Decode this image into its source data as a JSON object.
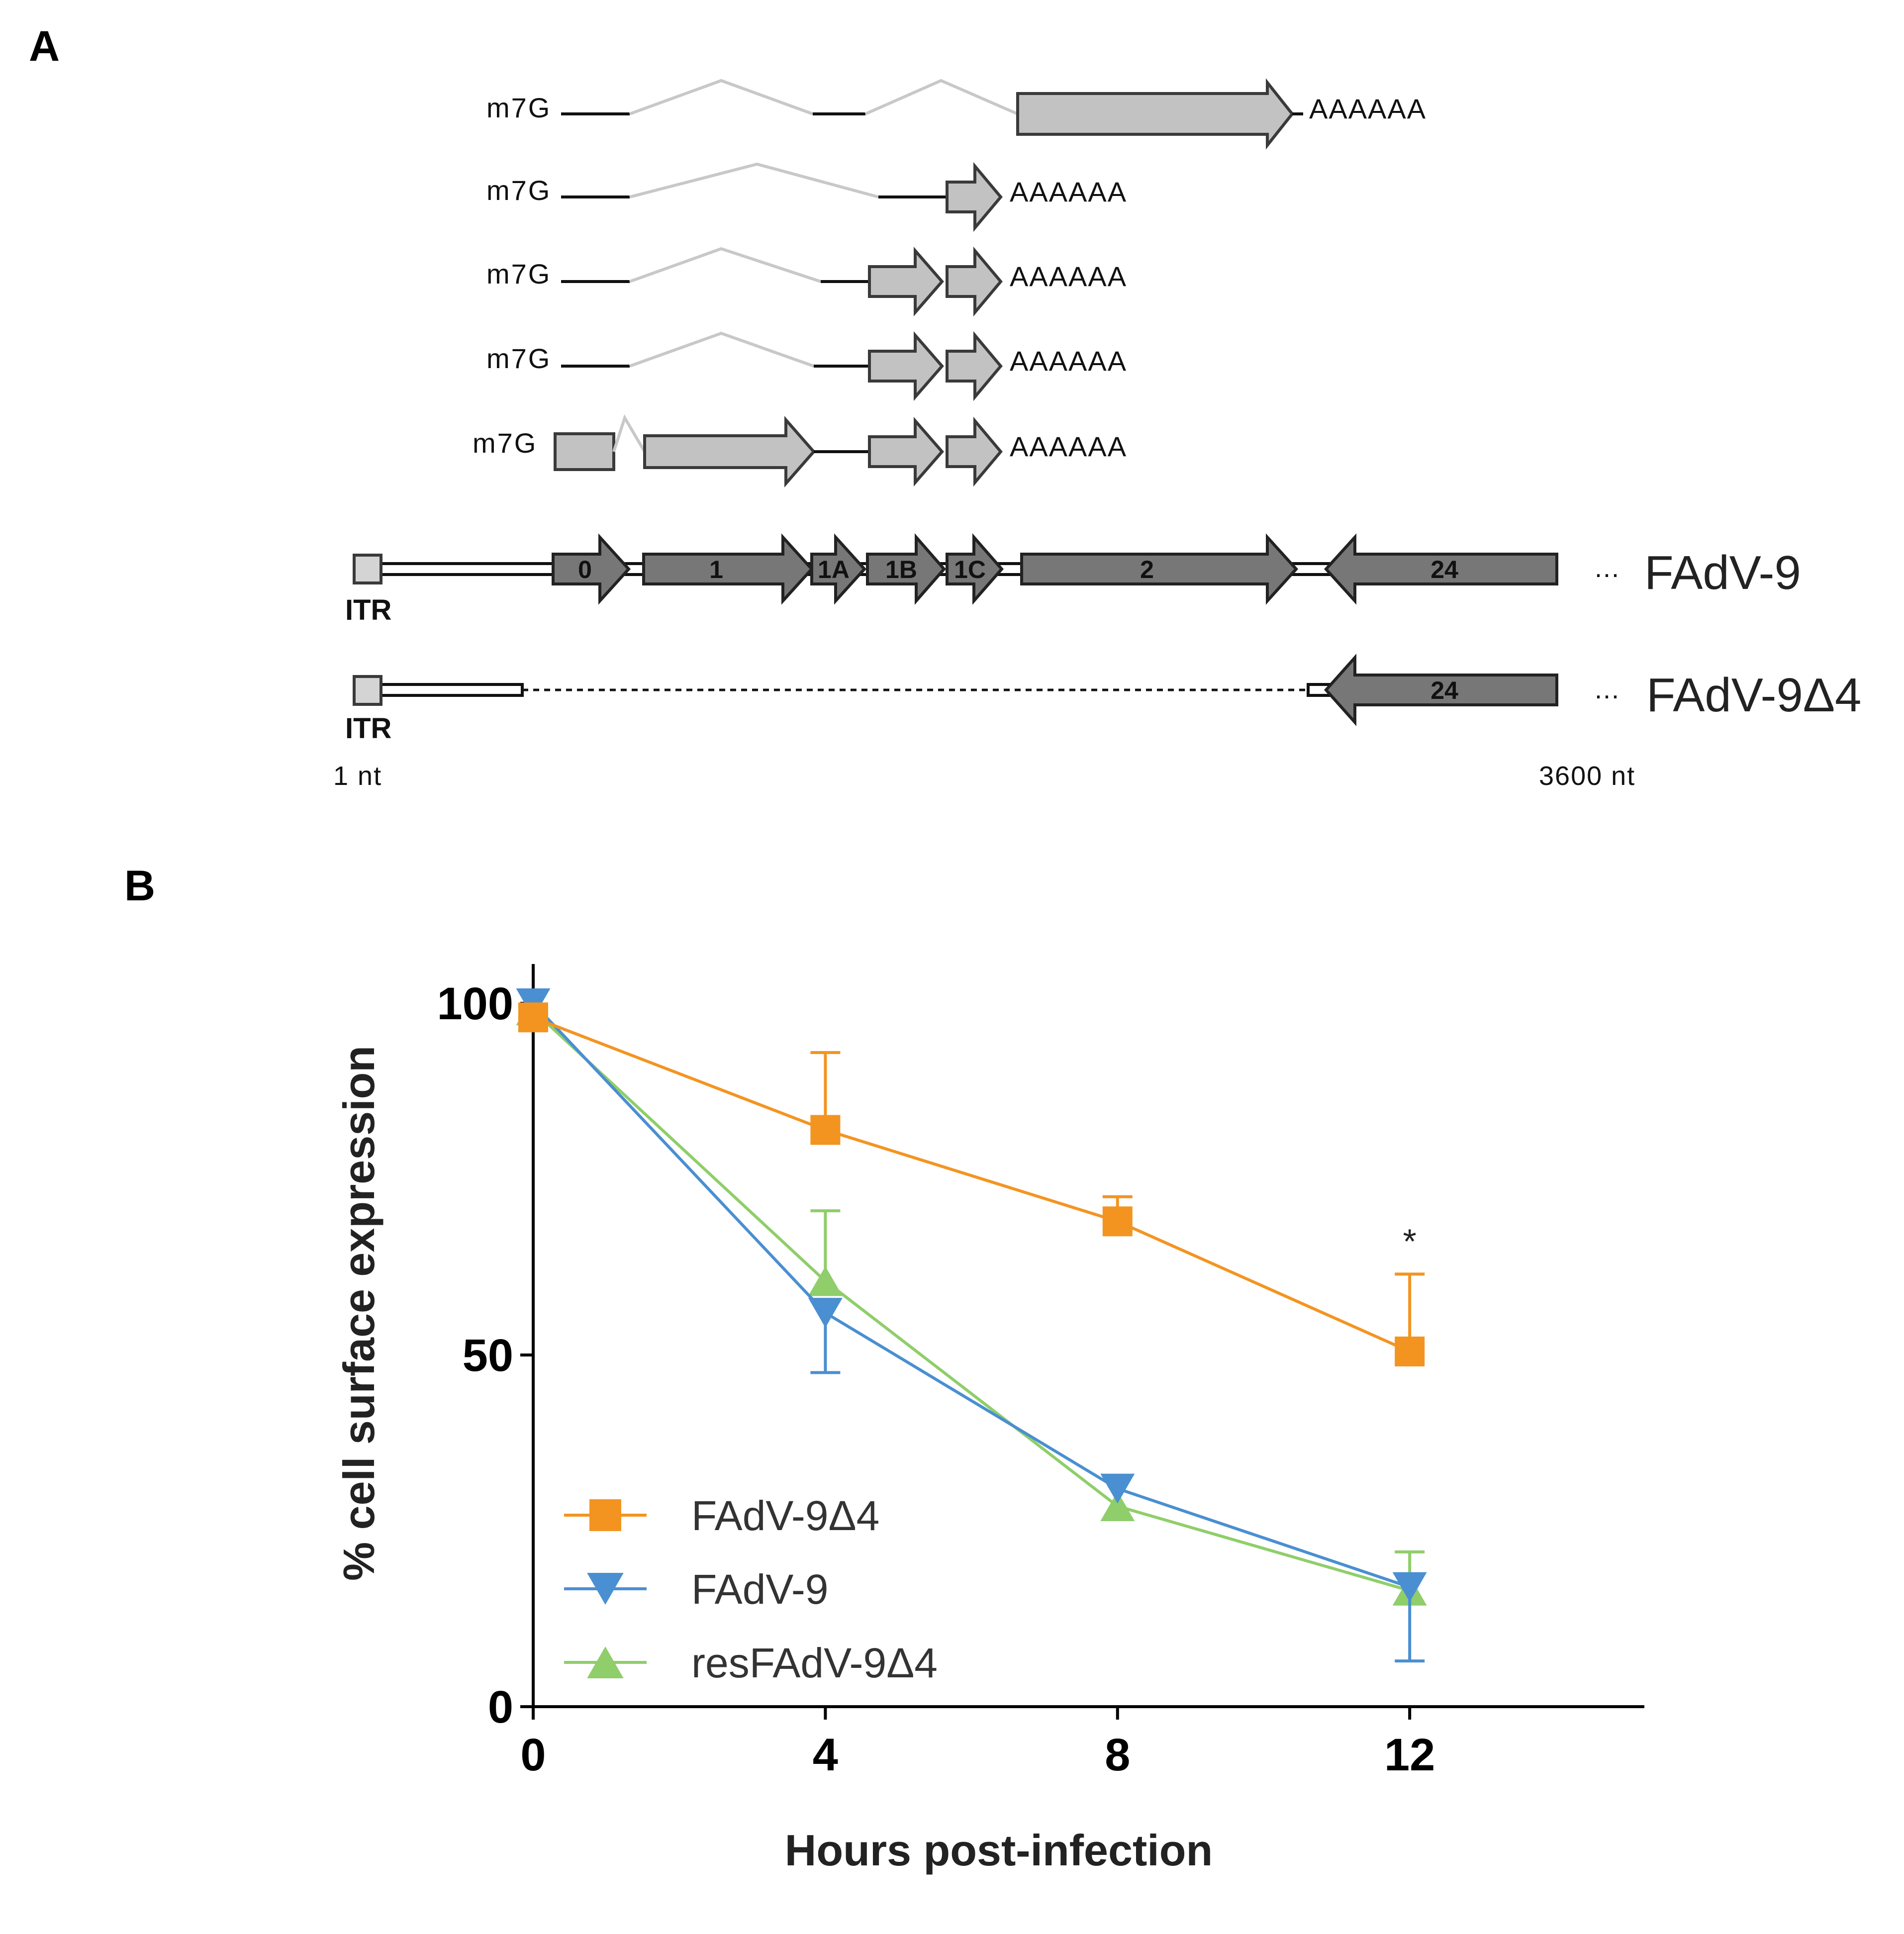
{
  "panel_a": {
    "label": "A",
    "cap": "m7G",
    "polya": "AAAAAA",
    "orfs": [
      "0",
      "1",
      "1A",
      "1B",
      "1C",
      "2",
      "24"
    ],
    "genomes": [
      {
        "name": "FAdV-9",
        "itr": "ITR"
      },
      {
        "name": "FAdV-9Δ4",
        "itr": "ITR",
        "deletion_orf": "24"
      }
    ],
    "coord_start": "1 nt",
    "coord_end": "3600 nt",
    "ellipsis": "...",
    "colors": {
      "orf_dark": "#777777",
      "orf_light": "#c2c2c2",
      "intron": "#c8c8c8",
      "outline": "#3a3a3a"
    }
  },
  "panel_b": {
    "label": "B"
  },
  "chart_data": {
    "type": "line",
    "title": "",
    "xlabel": "Hours post-infection",
    "ylabel": "% cell surface expression",
    "x": [
      0,
      4,
      8,
      12
    ],
    "xlim": [
      0,
      15
    ],
    "ylim": [
      0,
      100
    ],
    "xticks": [
      0,
      4,
      8,
      12
    ],
    "yticks": [
      0,
      50,
      100
    ],
    "grid": false,
    "legend_position": "bottom-left",
    "series": [
      {
        "name": "FAdV-9Δ4",
        "marker": "square",
        "color": "#f39421",
        "values": [
          98,
          82,
          69,
          50.5
        ],
        "error": [
          0,
          11,
          3.5,
          11
        ]
      },
      {
        "name": "FAdV-9",
        "marker": "triangle-down",
        "color": "#4a8fd1",
        "values": [
          100,
          56,
          31,
          17
        ],
        "error": [
          0,
          8.5,
          0,
          10.5
        ]
      },
      {
        "name": "resFAdV-9Δ4",
        "marker": "triangle-up",
        "color": "#8fce6a",
        "values": [
          99,
          60.5,
          28.5,
          16.5
        ],
        "error": [
          0,
          10,
          0,
          5.5
        ]
      }
    ],
    "annotations": [
      {
        "text": "*",
        "x": 12,
        "series": "FAdV-9Δ4"
      }
    ]
  }
}
